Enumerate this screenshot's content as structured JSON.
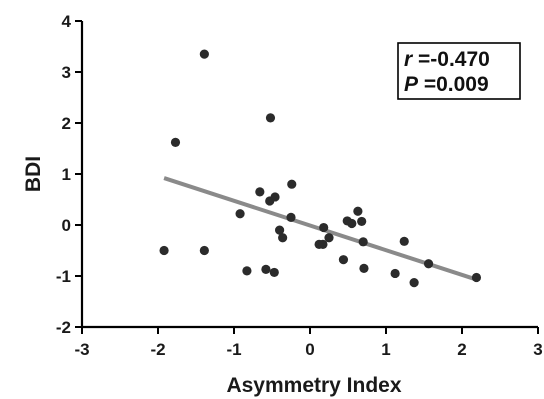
{
  "chart_data": {
    "type": "scatter",
    "xlabel": "Asymmetry Index",
    "ylabel": "BDI",
    "xlim": [
      -3,
      3
    ],
    "ylim": [
      -2,
      4
    ],
    "xticks": [
      "-3",
      "-2",
      "-1",
      "0",
      "1",
      "2",
      "3"
    ],
    "yticks": [
      "-2",
      "-1",
      "0",
      "1",
      "2",
      "3",
      "4"
    ],
    "grid": false,
    "points": [
      {
        "x": -1.92,
        "y": -0.5
      },
      {
        "x": -1.77,
        "y": 1.62
      },
      {
        "x": -1.39,
        "y": 3.35
      },
      {
        "x": -1.39,
        "y": -0.5
      },
      {
        "x": -0.92,
        "y": 0.22
      },
      {
        "x": -0.83,
        "y": -0.9
      },
      {
        "x": -0.66,
        "y": 0.65
      },
      {
        "x": -0.58,
        "y": -0.87
      },
      {
        "x": -0.52,
        "y": 2.1
      },
      {
        "x": -0.53,
        "y": 0.47
      },
      {
        "x": -0.46,
        "y": 0.55
      },
      {
        "x": -0.47,
        "y": -0.93
      },
      {
        "x": -0.4,
        "y": -0.1
      },
      {
        "x": -0.36,
        "y": -0.25
      },
      {
        "x": -0.24,
        "y": 0.8
      },
      {
        "x": -0.25,
        "y": 0.15
      },
      {
        "x": 0.12,
        "y": -0.38
      },
      {
        "x": 0.17,
        "y": -0.38
      },
      {
        "x": 0.18,
        "y": -0.05
      },
      {
        "x": 0.25,
        "y": -0.25
      },
      {
        "x": 0.44,
        "y": -0.68
      },
      {
        "x": 0.49,
        "y": 0.08
      },
      {
        "x": 0.55,
        "y": 0.03
      },
      {
        "x": 0.63,
        "y": 0.27
      },
      {
        "x": 0.68,
        "y": 0.07
      },
      {
        "x": 0.7,
        "y": -0.33
      },
      {
        "x": 0.71,
        "y": -0.85
      },
      {
        "x": 1.12,
        "y": -0.95
      },
      {
        "x": 1.24,
        "y": -0.32
      },
      {
        "x": 1.37,
        "y": -1.13
      },
      {
        "x": 1.56,
        "y": -0.76
      },
      {
        "x": 2.19,
        "y": -1.03
      }
    ],
    "regression_line": {
      "x": [
        -1.92,
        2.19
      ],
      "y": [
        0.92,
        -1.07
      ]
    },
    "annotation": {
      "r_symbol": "r",
      "r_value": " =-0.470",
      "p_symbol": "P",
      "p_value": " =0.009",
      "placement": "top-right"
    },
    "colors": {
      "points": "#2b2b2b",
      "line": "#8a8a8a",
      "axis": "#000000"
    }
  }
}
